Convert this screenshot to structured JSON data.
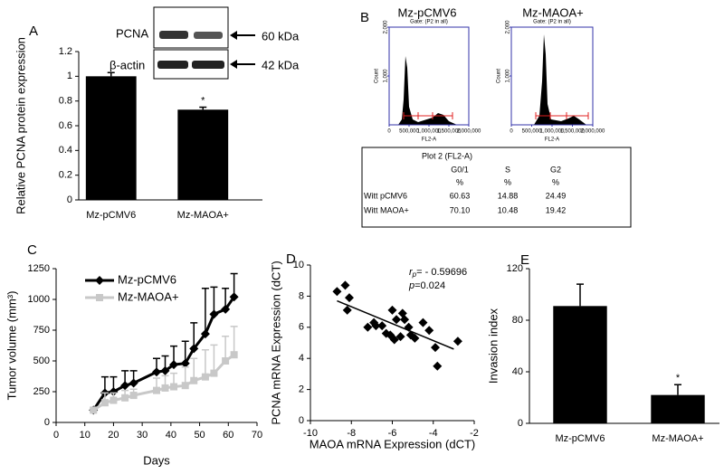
{
  "chart_data": [
    {
      "type": "bar",
      "panel": "A",
      "ylabel": "Relative PCNA protein expression",
      "categories": [
        "Mz-pCMV6",
        "Mz-MAOA+"
      ],
      "values": [
        1.0,
        0.73
      ],
      "errors": [
        0.03,
        0.02
      ],
      "significance": [
        null,
        "*"
      ],
      "color": "#000000",
      "ylim": [
        0,
        1.2
      ],
      "yticks": [
        0,
        0.2,
        0.4,
        0.6,
        0.8,
        1,
        1.2
      ]
    },
    {
      "type": "line",
      "panel": "C",
      "xlabel": "Days",
      "ylabel": "Tumor volume (mm³)",
      "x": [
        13,
        17,
        20,
        24,
        27,
        35,
        38,
        41,
        45,
        48,
        52,
        55,
        59,
        62
      ],
      "series": [
        {
          "name": "Mz-pCMV6",
          "color": "#000000",
          "marker": "diamond",
          "values": [
            100,
            240,
            250,
            300,
            320,
            410,
            420,
            470,
            480,
            600,
            720,
            880,
            920,
            1020
          ],
          "errors": [
            0,
            130,
            120,
            120,
            100,
            110,
            120,
            150,
            180,
            210,
            370,
            220,
            170,
            190
          ]
        },
        {
          "name": "Mz-MAOA+",
          "color": "#c8c8c8",
          "marker": "square",
          "values": [
            100,
            160,
            180,
            200,
            220,
            260,
            280,
            290,
            300,
            340,
            370,
            400,
            500,
            550
          ],
          "errors": [
            0,
            80,
            60,
            60,
            50,
            100,
            100,
            110,
            150,
            180,
            220,
            230,
            200,
            230
          ]
        }
      ],
      "xlim": [
        0,
        70
      ],
      "xticks": [
        0,
        10,
        20,
        30,
        40,
        50,
        60,
        70
      ],
      "ylim": [
        0,
        1250
      ],
      "yticks": [
        0,
        250,
        500,
        750,
        1000,
        1250
      ]
    },
    {
      "type": "scatter",
      "panel": "D",
      "xlabel": "MAOA mRNA Expression (dCT)",
      "ylabel": "PCNA mRNA Expression (dCT)",
      "stats": {
        "r_symbol": "r",
        "r_subscript": "p",
        "r_text": "= - 0.59696",
        "p_symbol": "p",
        "p_text": "=0.024"
      },
      "x": [
        -8.7,
        -8.3,
        -8.1,
        -8.2,
        -7.2,
        -6.9,
        -6.8,
        -6.5,
        -6.0,
        -5.8,
        -5.5,
        -5.4,
        -5.2,
        -4.5,
        -4.2,
        -3.9,
        -3.8,
        -2.8,
        -6.1,
        -5.9,
        -5.6,
        -5.1,
        -4.9,
        -6.3
      ],
      "values": [
        8.3,
        8.7,
        7.9,
        7.1,
        6.0,
        6.3,
        6.1,
        6.1,
        7.1,
        6.5,
        6.9,
        6.5,
        6.0,
        6.3,
        5.8,
        4.7,
        3.5,
        5.1,
        5.5,
        5.2,
        5.4,
        5.5,
        5.3,
        5.6
      ],
      "color": "#000000",
      "trendline": {
        "x": [
          -8.7,
          -3.0
        ],
        "y": [
          7.7,
          4.6
        ]
      },
      "xlim": [
        -10,
        -2
      ],
      "xticks": [
        -10,
        -8,
        -6,
        -4,
        -2
      ],
      "ylim": [
        0,
        10
      ],
      "yticks": [
        0,
        2,
        4,
        6,
        8,
        10
      ]
    },
    {
      "type": "bar",
      "panel": "E",
      "ylabel": "Invasion index",
      "categories": [
        "Mz-pCMV6",
        "Mz-MAOA+"
      ],
      "values": [
        91,
        22
      ],
      "errors": [
        17,
        8
      ],
      "significance": [
        null,
        "*"
      ],
      "color": "#000000",
      "ylim": [
        0,
        120
      ],
      "yticks": [
        0,
        40,
        80,
        120
      ]
    }
  ],
  "blot": {
    "labels": [
      "PCNA",
      "β-actin"
    ],
    "sizes": [
      "60 kDa",
      "42 kDa"
    ]
  },
  "flow": {
    "panel": "B",
    "gate": "Gate: (P2 in all)",
    "ylabel": "Count",
    "xlabel": "FL2-A",
    "titles": [
      "Mz-pCMV6",
      "Mz-MAOA+"
    ],
    "ylim": [
      0,
      2000
    ],
    "yticks": [
      {
        "value": 1000,
        "label": "1,000"
      },
      {
        "value": 2000,
        "label": "2,000"
      }
    ],
    "xlim": [
      0,
      2000000
    ],
    "xticks": [
      0,
      {
        "value": 500000,
        "label": "500,000"
      },
      {
        "value": 1000000,
        "label": "1,000,000"
      },
      {
        "value": 1500000,
        "label": "1,500,000"
      },
      {
        "value": 2000000,
        "label": "2,000,000"
      }
    ]
  },
  "table": {
    "title": "Plot 2 (FL2-A)",
    "header": [
      "G0/1",
      "S",
      "G2"
    ],
    "units": [
      "%",
      "%",
      "%"
    ],
    "rows": [
      [
        "Witt pCMV6",
        "60.63",
        "14.88",
        "24.49"
      ],
      [
        "Witt MAOA+",
        "70.10",
        "10.48",
        "19.42"
      ]
    ]
  }
}
